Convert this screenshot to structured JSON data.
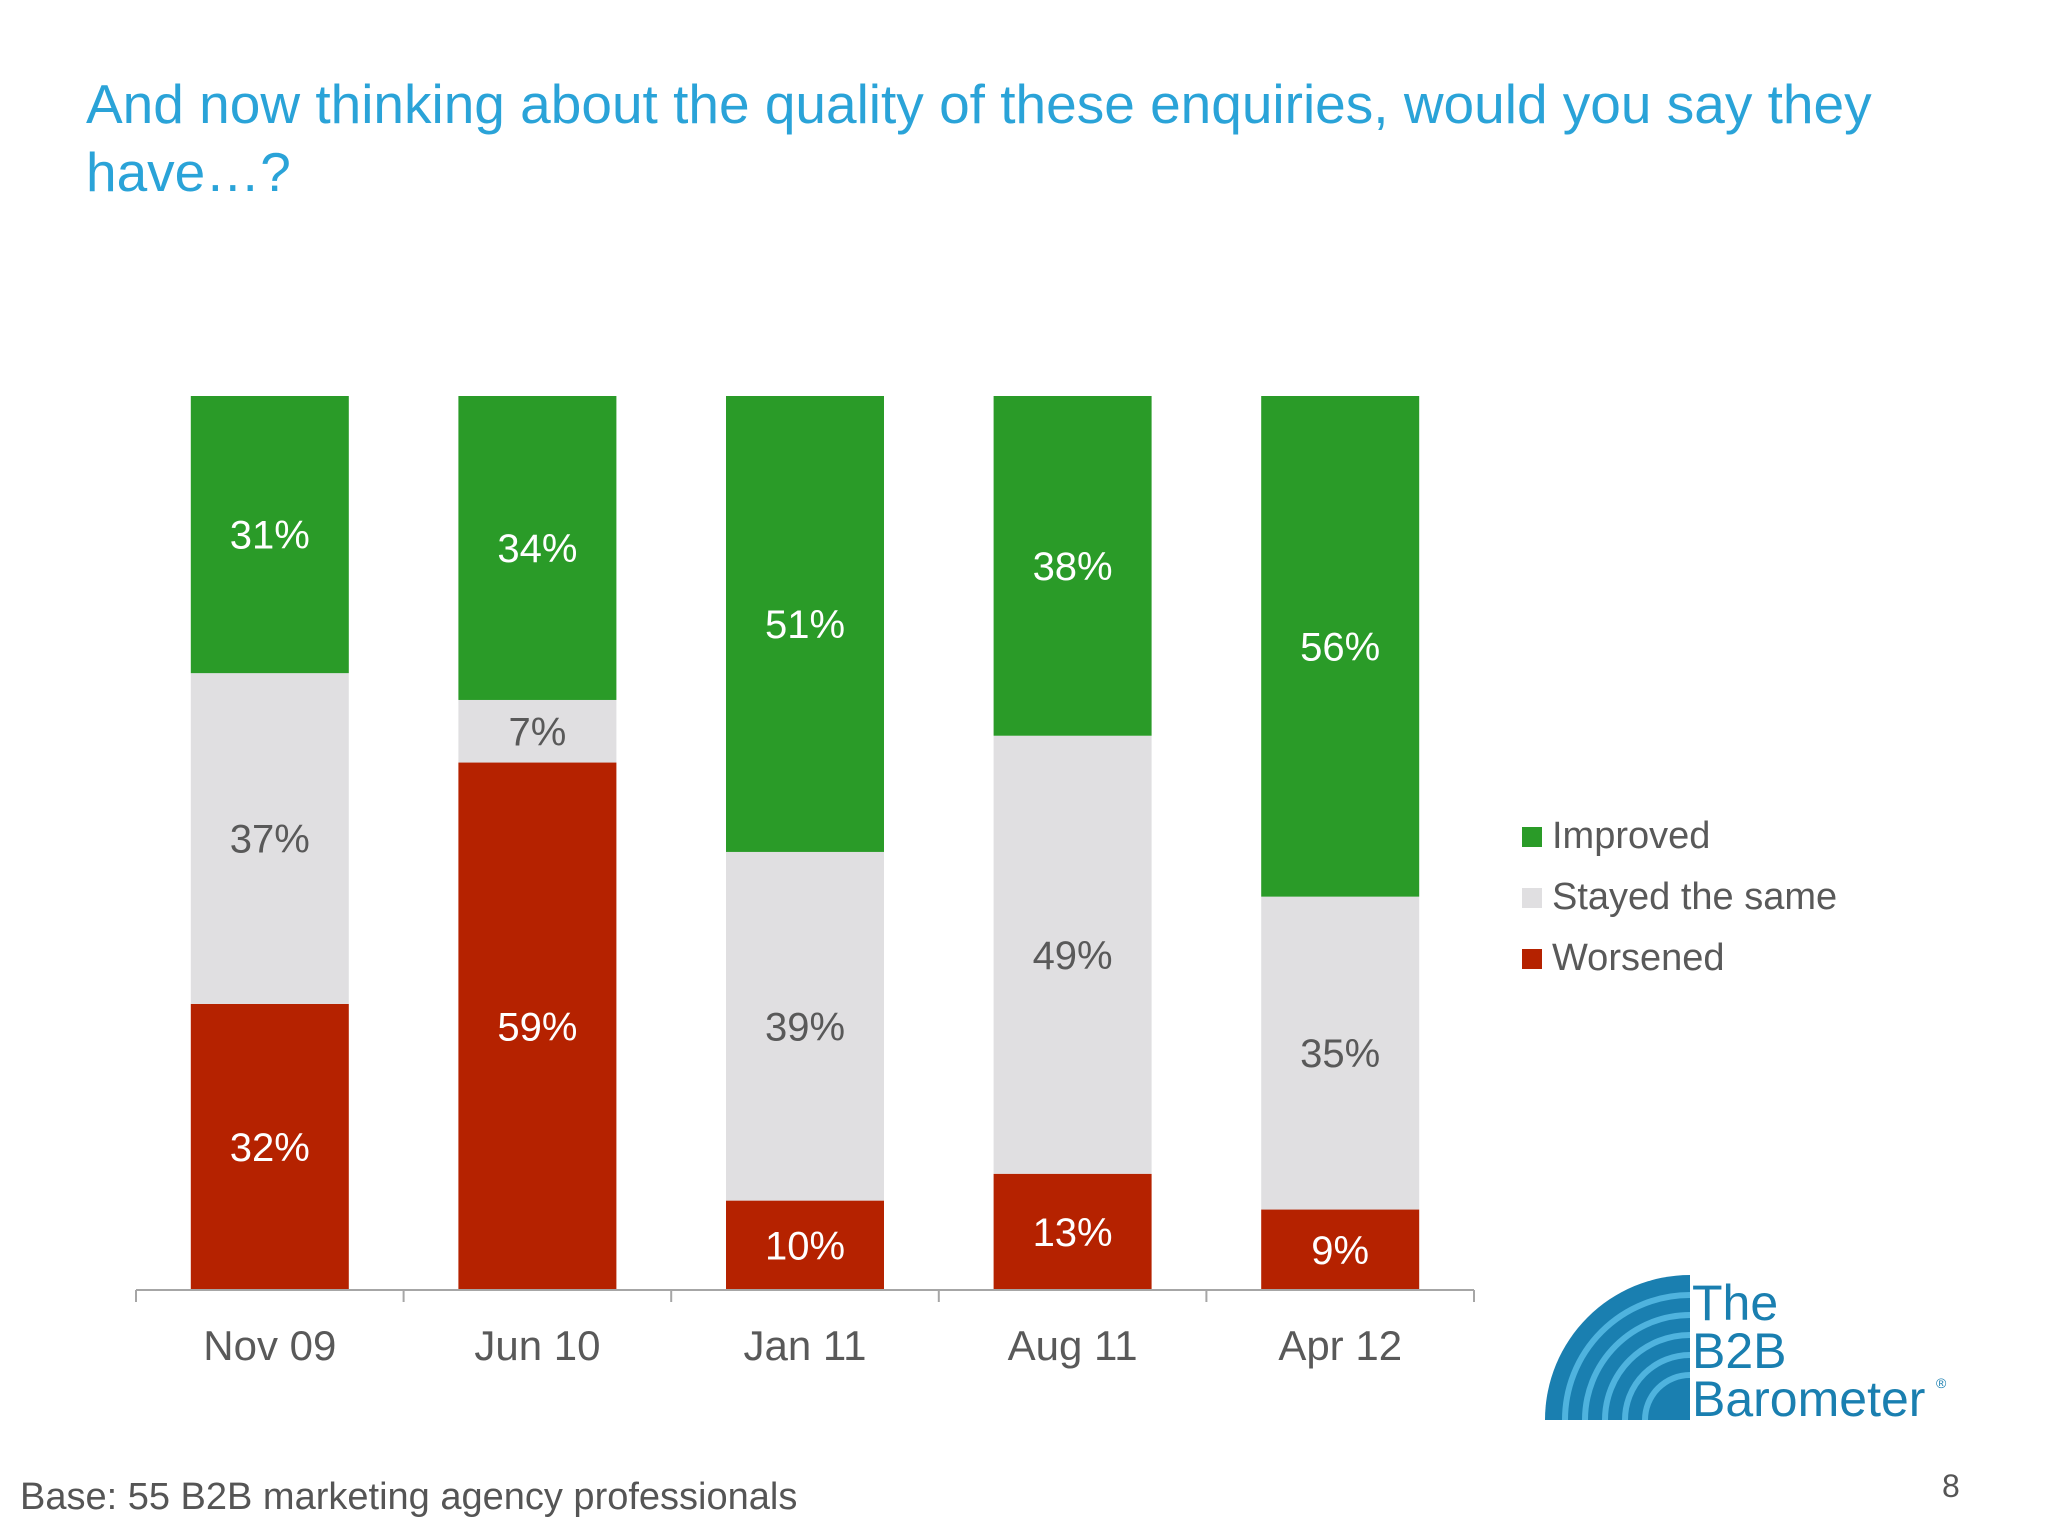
{
  "slide": {
    "title": "And now thinking about the quality of these enquiries, would you say they have…?",
    "footnote": "Base: 55 B2B marketing agency professionals",
    "page_number": "8"
  },
  "logo": {
    "line1": "The",
    "line2": "B2B",
    "line3": "Barometer",
    "mark": "®",
    "color": "#1a7fb0"
  },
  "chart_data": {
    "type": "bar",
    "stacked": true,
    "categories": [
      "Nov 09",
      "Jun 10",
      "Jan 11",
      "Aug 11",
      "Apr 12"
    ],
    "series": [
      {
        "name": "Worsened",
        "color": "#b52200",
        "label_color": "#ffffff",
        "values": [
          32,
          59,
          10,
          13,
          9
        ],
        "labels": [
          "32%",
          "59%",
          "10%",
          "13%",
          "9%"
        ]
      },
      {
        "name": "Stayed the same",
        "color": "#e0dfe1",
        "label_color": "#595959",
        "values": [
          37,
          7,
          39,
          49,
          35
        ],
        "labels": [
          "37%",
          "7%",
          "39%",
          "49%",
          "35%"
        ]
      },
      {
        "name": "Improved",
        "color": "#2a9b28",
        "label_color": "#ffffff",
        "values": [
          31,
          34,
          51,
          38,
          56
        ],
        "labels": [
          "31%",
          "34%",
          "51%",
          "38%",
          "56%"
        ]
      }
    ],
    "legend_order": [
      "Improved",
      "Stayed the same",
      "Worsened"
    ],
    "ylim": [
      0,
      100
    ],
    "legend_position": "right",
    "grid": false
  }
}
